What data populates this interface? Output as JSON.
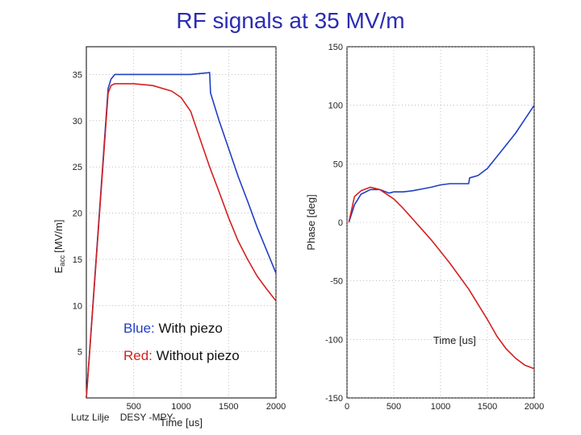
{
  "slide": {
    "title": "RF signals at 35 MV/m",
    "footer_author": "Lutz Lilje",
    "footer_org": "DESY -MPY-",
    "legend": {
      "blue_word": "Blue:",
      "blue_text": "With piezo",
      "red_word": "Red:",
      "red_text": "Without piezo"
    }
  },
  "colors": {
    "with_piezo": "#1f3fc4",
    "without_piezo": "#d42020",
    "title": "#2b2bb5"
  },
  "chart_data": [
    {
      "type": "line",
      "xlabel": "Time [us]",
      "ylabel": "E",
      "ylabel_sub": "acc",
      "ylabel_unit": "[MV/m]",
      "xlim": [
        0,
        2000
      ],
      "ylim": [
        0,
        38
      ],
      "xticks": [
        500,
        1000,
        1500,
        2000
      ],
      "yticks": [
        5,
        10,
        15,
        20,
        25,
        30,
        35
      ],
      "grid": true,
      "series": [
        {
          "color": "#1f3fc4",
          "x": [
            0,
            230,
            260,
            300,
            500,
            800,
            1000,
            1100,
            1300,
            1310,
            1400,
            1500,
            1600,
            1700,
            1800,
            1900,
            2000
          ],
          "y": [
            0,
            33.5,
            34.5,
            35.0,
            35.0,
            35.0,
            35.0,
            35.0,
            35.2,
            33.0,
            30.0,
            27.0,
            24.0,
            21.3,
            18.5,
            16.0,
            13.5
          ]
        },
        {
          "color": "#d42020",
          "x": [
            0,
            230,
            260,
            300,
            500,
            700,
            900,
            1000,
            1100,
            1200,
            1300,
            1400,
            1500,
            1600,
            1700,
            1800,
            1900,
            2000
          ],
          "y": [
            0,
            33.0,
            33.8,
            34.0,
            34.0,
            33.8,
            33.2,
            32.5,
            31.0,
            28.0,
            25.0,
            22.3,
            19.5,
            17.0,
            15.0,
            13.2,
            11.8,
            10.5
          ]
        }
      ]
    },
    {
      "type": "line",
      "xlabel": "Time [us]",
      "ylabel": "Phase [deg]",
      "xlim": [
        0,
        2000
      ],
      "ylim": [
        -150,
        150
      ],
      "xticks": [
        0,
        500,
        1000,
        1500,
        2000
      ],
      "yticks": [
        -150,
        -100,
        -50,
        0,
        50,
        100,
        150
      ],
      "grid": true,
      "series": [
        {
          "color": "#1f3fc4",
          "x": [
            20,
            80,
            150,
            250,
            350,
            450,
            500,
            600,
            700,
            800,
            900,
            1000,
            1100,
            1200,
            1300,
            1310,
            1400,
            1500,
            1600,
            1700,
            1800,
            1900,
            2000
          ],
          "y": [
            0,
            15,
            24,
            28,
            28,
            25,
            26,
            26,
            27,
            28.5,
            30,
            32,
            33,
            33,
            33,
            38,
            40,
            46,
            56,
            66,
            76,
            88,
            100
          ]
        },
        {
          "color": "#d42020",
          "x": [
            20,
            80,
            150,
            250,
            350,
            500,
            600,
            700,
            800,
            900,
            1000,
            1100,
            1200,
            1300,
            1400,
            1500,
            1600,
            1700,
            1800,
            1900,
            2000
          ],
          "y": [
            0,
            22,
            27,
            30,
            28,
            20,
            12,
            3,
            -6,
            -15,
            -25,
            -35,
            -46,
            -57,
            -70,
            -83,
            -97,
            -108,
            -116,
            -122,
            -125
          ]
        }
      ]
    }
  ]
}
